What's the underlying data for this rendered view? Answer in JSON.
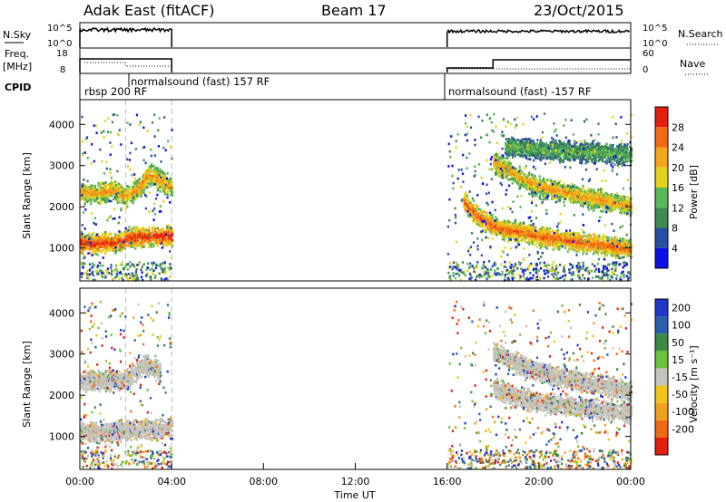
{
  "header": {
    "site": "Adak East (fitACF)",
    "beam": "Beam 17",
    "date": "23/Oct/2015"
  },
  "top_panels": {
    "nsky_label": "N.Sky",
    "nsky_ticks": [
      "10^5",
      "10^0"
    ],
    "nsearch_label": "N.Search",
    "nsearch_ticks": [
      "10^5",
      "10^0"
    ],
    "freq_label": "Freq.",
    "freq_unit": "[MHz]",
    "freq_ticks": [
      "18",
      "8"
    ],
    "nave_label": "Nave",
    "nave_ticks": [
      "60",
      "0"
    ],
    "cpid_label": "CPID",
    "cpid_segments": [
      "rbsp 200 RF",
      "normalsound (fast) 157 RF",
      "normalsound (fast) -157 RF"
    ]
  },
  "chart_data": [
    {
      "type": "heatmap",
      "name": "power",
      "ylabel": "Slant Range [km]",
      "xlabel": "",
      "xlim": [
        0,
        24
      ],
      "ylim": [
        200,
        4600
      ],
      "y_ticks": [
        1000,
        2000,
        3000,
        4000
      ],
      "colorbar": {
        "label": "Power [dB]",
        "ticks": [
          4,
          8,
          12,
          16,
          20,
          24,
          28
        ],
        "levels": 8,
        "range": [
          0,
          32
        ],
        "colors": [
          "#0a10e6",
          "#2b4fa0",
          "#3f8a4f",
          "#57b858",
          "#e3d21c",
          "#f5a51b",
          "#f06a12",
          "#e51d0c"
        ]
      },
      "data_windows_ut": [
        [
          0,
          4
        ],
        [
          16,
          24
        ]
      ],
      "echo_bands": [
        {
          "t": [
            0,
            0.6,
            1.2,
            1.6,
            2.2,
            2.8,
            3.3,
            4.0
          ],
          "range_km": [
            1150,
            1120,
            1160,
            1150,
            1280,
            1300,
            1310,
            1330
          ],
          "power_db": 30
        },
        {
          "t": [
            0,
            0.7,
            1.4,
            2.0,
            2.6,
            3.0,
            3.5,
            4.0
          ],
          "range_km": [
            2380,
            2360,
            2430,
            2280,
            2500,
            2830,
            2650,
            2500
          ],
          "power_db": 24
        },
        {
          "t": [
            16.7,
            17.3,
            18.0,
            18.7,
            19.3,
            20.0,
            21.0,
            22.0,
            23.0,
            24.0
          ],
          "range_km": [
            2150,
            1800,
            1550,
            1450,
            1400,
            1300,
            1220,
            1150,
            1080,
            1000
          ],
          "power_db": 27
        },
        {
          "t": [
            18.0,
            18.6,
            19.2,
            20.0,
            21.0,
            22.0,
            23.0,
            24.0
          ],
          "range_km": [
            3100,
            2950,
            2700,
            2500,
            2400,
            2250,
            2150,
            2050
          ],
          "power_db": 23
        },
        {
          "t": [
            18.5,
            19.5,
            20.5,
            21.5,
            22.5,
            23.5,
            24.0
          ],
          "range_km": [
            3500,
            3450,
            3400,
            3350,
            3350,
            3300,
            3300
          ],
          "power_db": 14
        }
      ]
    },
    {
      "type": "heatmap",
      "name": "velocity",
      "ylabel": "Slant Range [km]",
      "xlabel": "Time UT",
      "xlim": [
        0,
        24
      ],
      "ylim": [
        200,
        4600
      ],
      "x_ticks": [
        "00:00",
        "04:00",
        "08:00",
        "12:00",
        "16:00",
        "20:00",
        "00:00"
      ],
      "y_ticks": [
        1000,
        2000,
        3000,
        4000
      ],
      "colorbar": {
        "label": "Velocity [m s⁻¹]",
        "ticks": [
          "200",
          "100",
          "50",
          "15",
          "-15",
          "-50",
          "-100",
          "-200"
        ],
        "colors": [
          "#2236c8",
          "#2a5fb0",
          "#3c8a46",
          "#6ac23c",
          "#c4c3be",
          "#f2c41a",
          "#f0a01a",
          "#ef6a12",
          "#e51d0c"
        ]
      },
      "data_windows_ut": [
        [
          0,
          4
        ],
        [
          16,
          24
        ]
      ],
      "echo_bands": [
        {
          "t": [
            0,
            1,
            2,
            3,
            4
          ],
          "range_km": [
            1150,
            1130,
            1170,
            1200,
            1250
          ],
          "velocity": 0
        },
        {
          "t": [
            0,
            1,
            2,
            2.8,
            3.5
          ],
          "range_km": [
            2380,
            2380,
            2400,
            2780,
            2600
          ],
          "velocity": 0
        },
        {
          "t": [
            18.0,
            19.0,
            20.0,
            21.0,
            22.0,
            23.0,
            24.0
          ],
          "range_km": [
            2200,
            2000,
            1850,
            1800,
            1700,
            1650,
            1600
          ],
          "velocity": 0
        },
        {
          "t": [
            18.0,
            19.0,
            20.0,
            21.0,
            22.0,
            23.0,
            24.0
          ],
          "range_km": [
            3100,
            2800,
            2600,
            2450,
            2350,
            2250,
            2100
          ],
          "velocity": 0
        }
      ]
    }
  ]
}
